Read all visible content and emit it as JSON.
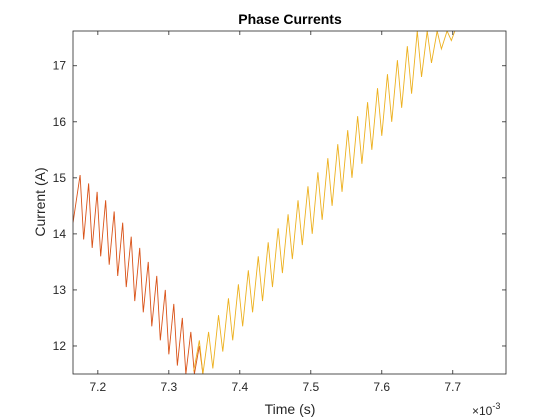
{
  "chart_data": {
    "type": "line",
    "title": "Phase Currents",
    "xlabel": "Time (s)",
    "ylabel": "Current (A)",
    "x_multiplier_base": "×10",
    "x_multiplier_exp": "-3",
    "xlim": [
      7.165,
      7.775
    ],
    "ylim": [
      11.5,
      17.62
    ],
    "x_unit_scale": 0.001,
    "grid": false,
    "xticks": [
      7.2,
      7.3,
      7.4,
      7.5,
      7.6,
      7.7
    ],
    "xtick_labels": [
      "7.2",
      "7.3",
      "7.4",
      "7.5",
      "7.6",
      "7.7"
    ],
    "yticks": [
      12,
      13,
      14,
      15,
      16,
      17
    ],
    "ytick_labels": [
      "12",
      "13",
      "14",
      "15",
      "16",
      "17"
    ],
    "series": [
      {
        "color": "#d95319",
        "x": [
          7.165,
          7.175,
          7.18,
          7.187,
          7.192,
          7.199,
          7.204,
          7.211,
          7.216,
          7.223,
          7.228,
          7.235,
          7.24,
          7.247,
          7.252,
          7.259,
          7.264,
          7.271,
          7.276,
          7.283,
          7.288,
          7.295,
          7.3,
          7.307,
          7.312,
          7.319,
          7.324,
          7.331,
          7.336,
          7.343,
          7.348
        ],
        "y": [
          14.2,
          15.05,
          13.9,
          14.9,
          13.75,
          14.75,
          13.6,
          14.6,
          13.45,
          14.4,
          13.25,
          14.2,
          13.05,
          13.95,
          12.8,
          13.75,
          12.6,
          13.5,
          12.35,
          13.25,
          12.1,
          13.0,
          11.85,
          12.75,
          11.65,
          12.5,
          11.5,
          12.25,
          11.5,
          12.0,
          11.5
        ]
      },
      {
        "color": "#edb120",
        "x": [
          7.335,
          7.343,
          7.348,
          7.356,
          7.362,
          7.37,
          7.376,
          7.384,
          7.39,
          7.398,
          7.404,
          7.412,
          7.418,
          7.426,
          7.432,
          7.44,
          7.446,
          7.454,
          7.46,
          7.468,
          7.474,
          7.482,
          7.488,
          7.496,
          7.502,
          7.51,
          7.516,
          7.524,
          7.53,
          7.538,
          7.544,
          7.552,
          7.558,
          7.566,
          7.572,
          7.58,
          7.586,
          7.594,
          7.6,
          7.608,
          7.614,
          7.622,
          7.628,
          7.636,
          7.642,
          7.65,
          7.656,
          7.664,
          7.67,
          7.678,
          7.684,
          7.692,
          7.698,
          7.703
        ],
        "y": [
          11.55,
          12.1,
          11.5,
          12.25,
          11.6,
          12.55,
          11.9,
          12.85,
          12.1,
          13.1,
          12.35,
          13.35,
          12.6,
          13.6,
          12.8,
          13.85,
          13.05,
          14.1,
          13.3,
          14.35,
          13.55,
          14.6,
          13.8,
          14.85,
          14.0,
          15.1,
          14.25,
          15.35,
          14.5,
          15.6,
          14.75,
          15.85,
          15.0,
          16.1,
          15.25,
          16.35,
          15.5,
          16.6,
          15.75,
          16.85,
          16.0,
          17.1,
          16.25,
          17.35,
          16.5,
          17.62,
          16.8,
          17.62,
          17.05,
          17.62,
          17.3,
          17.62,
          17.45,
          17.62
        ]
      }
    ]
  }
}
